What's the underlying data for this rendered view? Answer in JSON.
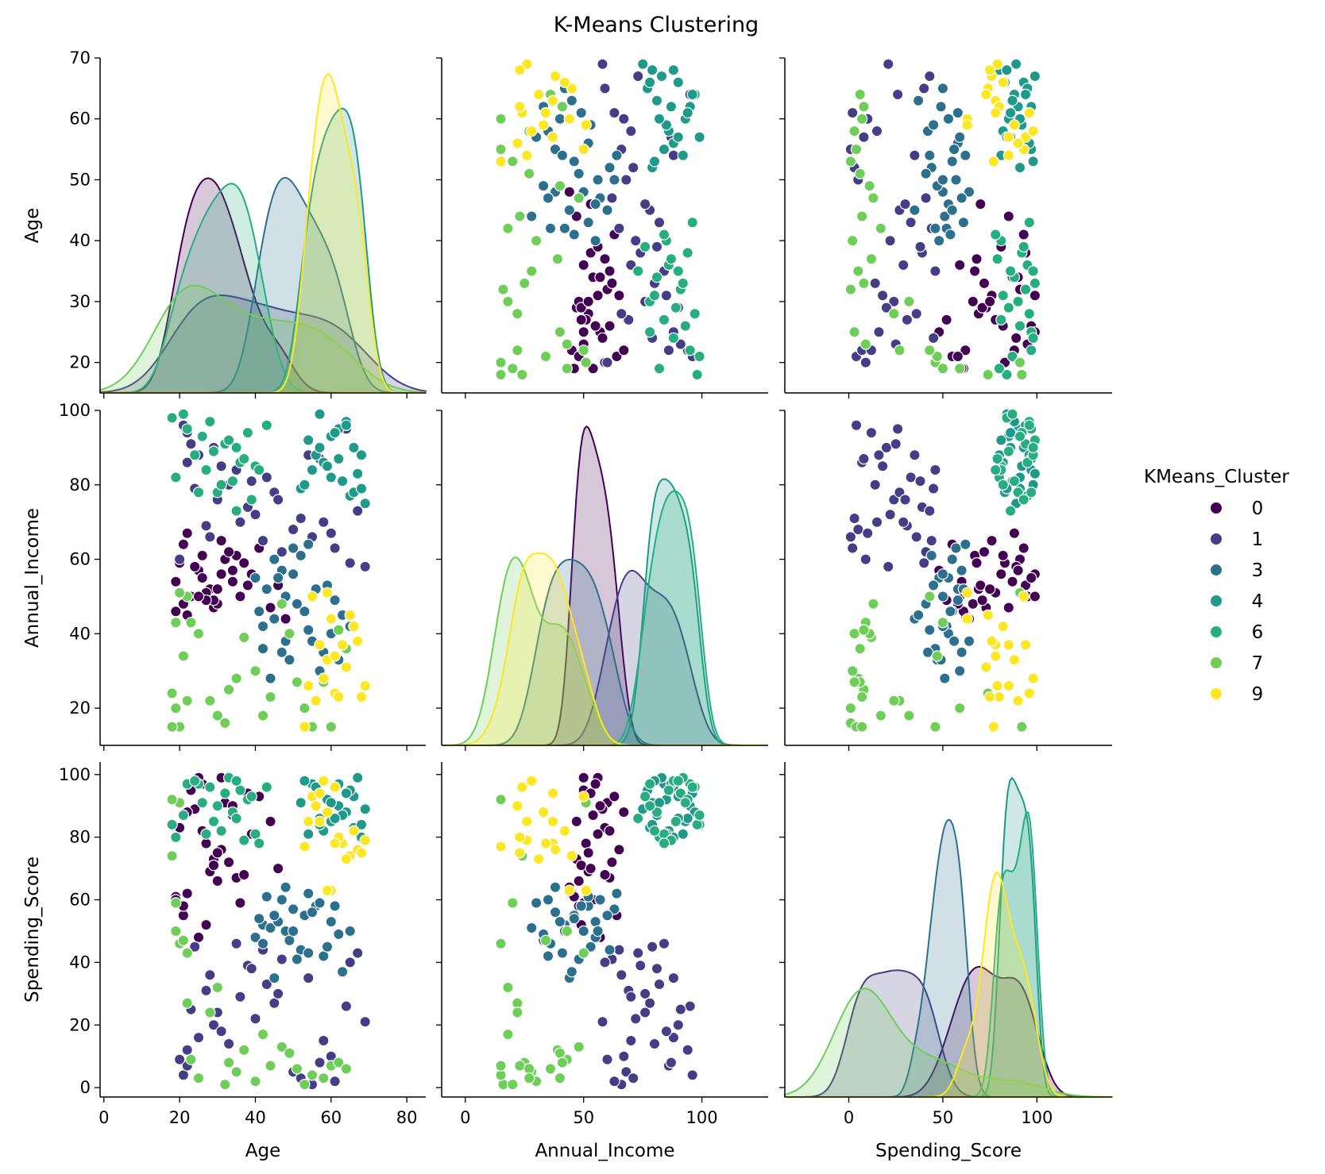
{
  "chart_data": {
    "type": "scatter",
    "title": "K-Means Clustering",
    "legend_title": "KMeans_Cluster",
    "legend_placement": "right",
    "variables": [
      "Age",
      "Annual_Income",
      "Spending_Score"
    ],
    "diagonal": "kde",
    "grid": false,
    "ranges": {
      "Age": [
        15,
        70
      ],
      "Annual_Income": [
        10,
        100
      ],
      "Spending_Score": [
        -3,
        104
      ]
    },
    "ticks": {
      "Age": [
        20,
        30,
        40,
        50,
        60,
        70
      ],
      "Annual_Income": [
        20,
        40,
        60,
        80,
        100
      ],
      "Spending_Score": [
        0,
        20,
        40,
        60,
        80,
        100
      ]
    },
    "bottom_ticks": {
      "Age": [
        0,
        20,
        40,
        60,
        80
      ],
      "Annual_Income": [
        0,
        50,
        100
      ],
      "Spending_Score": [
        0,
        50,
        100
      ]
    },
    "bottom_ranges": {
      "Age": [
        -1,
        85
      ],
      "Annual_Income": [
        -10,
        128
      ],
      "Spending_Score": [
        -34,
        140
      ]
    },
    "clusters": [
      {
        "name": "0",
        "color": "#440154",
        "points": [
          [
            28,
            52,
            69
          ],
          [
            31,
            56,
            99
          ],
          [
            22,
            45,
            62
          ],
          [
            25,
            57,
            48
          ],
          [
            19,
            46,
            61
          ],
          [
            23,
            50,
            95
          ],
          [
            32,
            60,
            91
          ],
          [
            34,
            54,
            87
          ],
          [
            29,
            47,
            73
          ],
          [
            21,
            64,
            55
          ],
          [
            27,
            51,
            78
          ],
          [
            35,
            61,
            67
          ],
          [
            38,
            53,
            94
          ],
          [
            30,
            48,
            66
          ],
          [
            20,
            59,
            83
          ],
          [
            33,
            62,
            72
          ],
          [
            26,
            55,
            97
          ],
          [
            24,
            58,
            89
          ],
          [
            29,
            49,
            71
          ],
          [
            36,
            50,
            59
          ],
          [
            41,
            63,
            93
          ],
          [
            44,
            47,
            85
          ],
          [
            31,
            65,
            76
          ],
          [
            19,
            54,
            60
          ],
          [
            27,
            49,
            52
          ],
          [
            22,
            67,
            88
          ],
          [
            39,
            56,
            81
          ],
          [
            25,
            50,
            99
          ],
          [
            37,
            59,
            68
          ],
          [
            46,
            53,
            70
          ],
          [
            34,
            57,
            90
          ],
          [
            48,
            44,
            64
          ],
          [
            21,
            48,
            58
          ],
          [
            30,
            52,
            75
          ],
          [
            26,
            61,
            82
          ]
        ]
      },
      {
        "name": "1",
        "color": "#433e85",
        "points": [
          [
            21,
            96,
            4
          ],
          [
            22,
            86,
            7
          ],
          [
            25,
            88,
            16
          ],
          [
            30,
            76,
            24
          ],
          [
            33,
            80,
            14
          ],
          [
            27,
            69,
            31
          ],
          [
            36,
            70,
            29
          ],
          [
            40,
            72,
            22
          ],
          [
            42,
            65,
            44
          ],
          [
            28,
            66,
            36
          ],
          [
            45,
            78,
            27
          ],
          [
            38,
            74,
            39
          ],
          [
            22,
            94,
            12
          ],
          [
            50,
            68,
            5
          ],
          [
            35,
            84,
            46
          ],
          [
            29,
            90,
            20
          ],
          [
            43,
            82,
            33
          ],
          [
            20,
            60,
            9
          ],
          [
            47,
            62,
            41
          ],
          [
            55,
            66,
            1
          ],
          [
            52,
            71,
            3
          ],
          [
            31,
            85,
            18
          ],
          [
            24,
            79,
            45
          ],
          [
            60,
            67,
            10
          ],
          [
            64,
            95,
            26
          ],
          [
            57,
            87,
            8
          ],
          [
            65,
            59,
            40
          ],
          [
            69,
            58,
            21
          ],
          [
            46,
            76,
            30
          ],
          [
            54,
            88,
            35
          ],
          [
            61,
            63,
            2
          ],
          [
            67,
            73,
            43
          ],
          [
            23,
            91,
            25
          ],
          [
            39,
            81,
            38
          ],
          [
            58,
            70,
            15
          ]
        ]
      },
      {
        "name": "3",
        "color": "#2d708e",
        "points": [
          [
            40,
            55,
            48
          ],
          [
            42,
            42,
            52
          ],
          [
            45,
            44,
            35
          ],
          [
            48,
            50,
            50
          ],
          [
            50,
            63,
            57
          ],
          [
            52,
            61,
            44
          ],
          [
            54,
            64,
            62
          ],
          [
            56,
            52,
            58
          ],
          [
            42,
            36,
            46
          ],
          [
            47,
            57,
            60
          ],
          [
            44,
            28,
            51
          ],
          [
            53,
            46,
            55
          ],
          [
            58,
            35,
            42
          ],
          [
            60,
            40,
            53
          ],
          [
            49,
            33,
            47
          ],
          [
            55,
            38,
            56
          ],
          [
            51,
            48,
            41
          ],
          [
            57,
            30,
            59
          ],
          [
            46,
            55,
            53
          ],
          [
            62,
            33,
            49
          ],
          [
            41,
            46,
            54
          ],
          [
            43,
            52,
            61
          ],
          [
            63,
            45,
            37
          ],
          [
            65,
            42,
            50
          ],
          [
            48,
            38,
            64
          ],
          [
            59,
            53,
            45
          ],
          [
            45,
            60,
            55
          ],
          [
            61,
            49,
            58
          ],
          [
            54,
            41,
            43
          ],
          [
            50,
            56,
            50
          ],
          [
            47,
            35,
            60
          ]
        ]
      },
      {
        "name": "4",
        "color": "#1f9a8a",
        "points": [
          [
            58,
            86,
            82
          ],
          [
            60,
            93,
            85
          ],
          [
            62,
            95,
            90
          ],
          [
            64,
            97,
            88
          ],
          [
            66,
            90,
            93
          ],
          [
            68,
            88,
            80
          ],
          [
            55,
            84,
            97
          ],
          [
            52,
            79,
            91
          ],
          [
            57,
            99,
            84
          ],
          [
            63,
            81,
            87
          ],
          [
            65,
            77,
            95
          ],
          [
            67,
            83,
            99
          ],
          [
            69,
            75,
            89
          ],
          [
            54,
            92,
            81
          ],
          [
            56,
            88,
            96
          ],
          [
            59,
            85,
            92
          ],
          [
            61,
            94,
            86
          ],
          [
            53,
            80,
            98
          ],
          [
            66,
            78,
            83
          ],
          [
            64,
            96,
            94
          ],
          [
            60,
            82,
            91
          ],
          [
            57,
            90,
            86
          ],
          [
            62,
            87,
            97
          ],
          [
            68,
            79,
            84
          ]
        ]
      },
      {
        "name": "6",
        "color": "#27ad81",
        "points": [
          [
            18,
            98,
            84
          ],
          [
            22,
            95,
            97
          ],
          [
            25,
            78,
            97
          ],
          [
            28,
            97,
            96
          ],
          [
            32,
            91,
            94
          ],
          [
            34,
            81,
            88
          ],
          [
            30,
            78,
            90
          ],
          [
            36,
            86,
            95
          ],
          [
            38,
            94,
            92
          ],
          [
            40,
            85,
            81
          ],
          [
            19,
            82,
            80
          ],
          [
            24,
            88,
            98
          ],
          [
            27,
            84,
            81
          ],
          [
            33,
            92,
            99
          ],
          [
            35,
            73,
            86
          ],
          [
            37,
            87,
            79
          ],
          [
            43,
            96,
            96
          ],
          [
            31,
            80,
            82
          ],
          [
            26,
            93,
            91
          ],
          [
            29,
            89,
            85
          ],
          [
            39,
            76,
            93
          ],
          [
            21,
            99,
            87
          ],
          [
            41,
            84,
            78
          ],
          [
            35,
            90,
            98
          ]
        ]
      },
      {
        "name": "7",
        "color": "#6ece58",
        "points": [
          [
            18,
            24,
            74
          ],
          [
            19,
            20,
            59
          ],
          [
            20,
            15,
            46
          ],
          [
            21,
            34,
            47
          ],
          [
            22,
            22,
            27
          ],
          [
            23,
            43,
            9
          ],
          [
            25,
            40,
            3
          ],
          [
            28,
            22,
            24
          ],
          [
            30,
            18,
            32
          ],
          [
            32,
            16,
            1
          ],
          [
            33,
            25,
            8
          ],
          [
            35,
            28,
            5
          ],
          [
            37,
            39,
            12
          ],
          [
            40,
            30,
            2
          ],
          [
            42,
            18,
            17
          ],
          [
            44,
            23,
            7
          ],
          [
            47,
            48,
            13
          ],
          [
            49,
            40,
            11
          ],
          [
            51,
            27,
            6
          ],
          [
            53,
            20,
            1
          ],
          [
            55,
            15,
            4
          ],
          [
            58,
            27,
            3
          ],
          [
            60,
            15,
            7
          ],
          [
            62,
            41,
            8
          ],
          [
            64,
            36,
            6
          ],
          [
            19,
            43,
            50
          ],
          [
            22,
            50,
            43
          ],
          [
            20,
            51,
            91
          ],
          [
            18,
            15,
            92
          ]
        ]
      },
      {
        "name": "9",
        "color": "#fde725",
        "points": [
          [
            55,
            50,
            93
          ],
          [
            57,
            37,
            94
          ],
          [
            59,
            33,
            88
          ],
          [
            61,
            24,
            96
          ],
          [
            63,
            37,
            78
          ],
          [
            65,
            45,
            74
          ],
          [
            67,
            38,
            76
          ],
          [
            69,
            26,
            79
          ],
          [
            54,
            26,
            85
          ],
          [
            56,
            22,
            90
          ],
          [
            58,
            28,
            98
          ],
          [
            60,
            44,
            63
          ],
          [
            62,
            23,
            80
          ],
          [
            64,
            31,
            73
          ],
          [
            66,
            42,
            82
          ],
          [
            68,
            23,
            75
          ],
          [
            53,
            15,
            77
          ],
          [
            57,
            37,
            85
          ],
          [
            59,
            51,
            63
          ],
          [
            61,
            34,
            78
          ]
        ]
      }
    ]
  }
}
